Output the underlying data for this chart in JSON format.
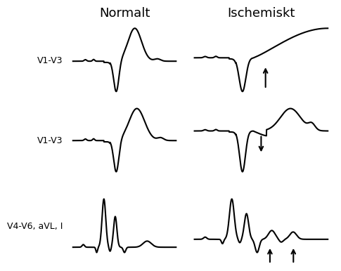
{
  "title_normal": "Normalt",
  "title_ischemic": "Ischemiskt",
  "row_labels": [
    "V1-V3",
    "V1-V3",
    "V4-V6, aVL, I"
  ],
  "background_color": "#ffffff",
  "line_color": "#000000",
  "font_size_title": 13,
  "font_size_label": 9,
  "figsize": [
    4.74,
    3.81
  ],
  "dpi": 100
}
